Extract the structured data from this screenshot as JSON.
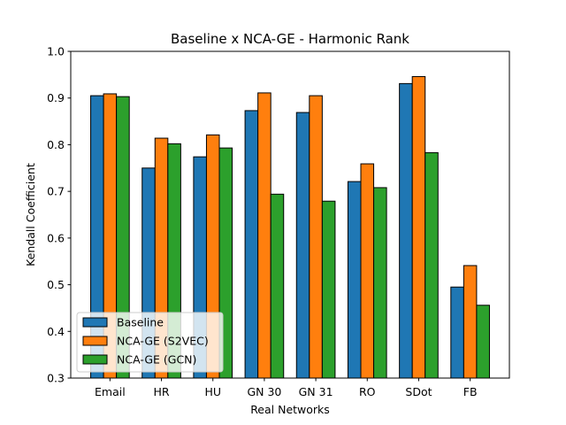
{
  "chart_data": {
    "type": "bar",
    "title": "Baseline x NCA-GE - Harmonic Rank",
    "xlabel": "Real Networks",
    "ylabel": "Kendall Coefficient",
    "ylim": [
      0.3,
      1.0
    ],
    "yticks": [
      "0.3",
      "0.4",
      "0.5",
      "0.6",
      "0.7",
      "0.8",
      "0.9",
      "1.0"
    ],
    "categories": [
      "Email",
      "HR",
      "HU",
      "GN 30",
      "GN 31",
      "RO",
      "SDot",
      "FB"
    ],
    "series": [
      {
        "name": "Baseline",
        "color": "#1f77b4",
        "values": [
          0.905,
          0.75,
          0.774,
          0.873,
          0.869,
          0.721,
          0.931,
          0.495
        ]
      },
      {
        "name": "NCA-GE (S2VEC)",
        "color": "#ff7f0e",
        "values": [
          0.909,
          0.814,
          0.821,
          0.911,
          0.905,
          0.759,
          0.946,
          0.541
        ]
      },
      {
        "name": "NCA-GE (GCN)",
        "color": "#2ca02c",
        "values": [
          0.903,
          0.802,
          0.793,
          0.694,
          0.679,
          0.708,
          0.783,
          0.456
        ]
      }
    ],
    "legend": "lower-left",
    "grid": false
  }
}
